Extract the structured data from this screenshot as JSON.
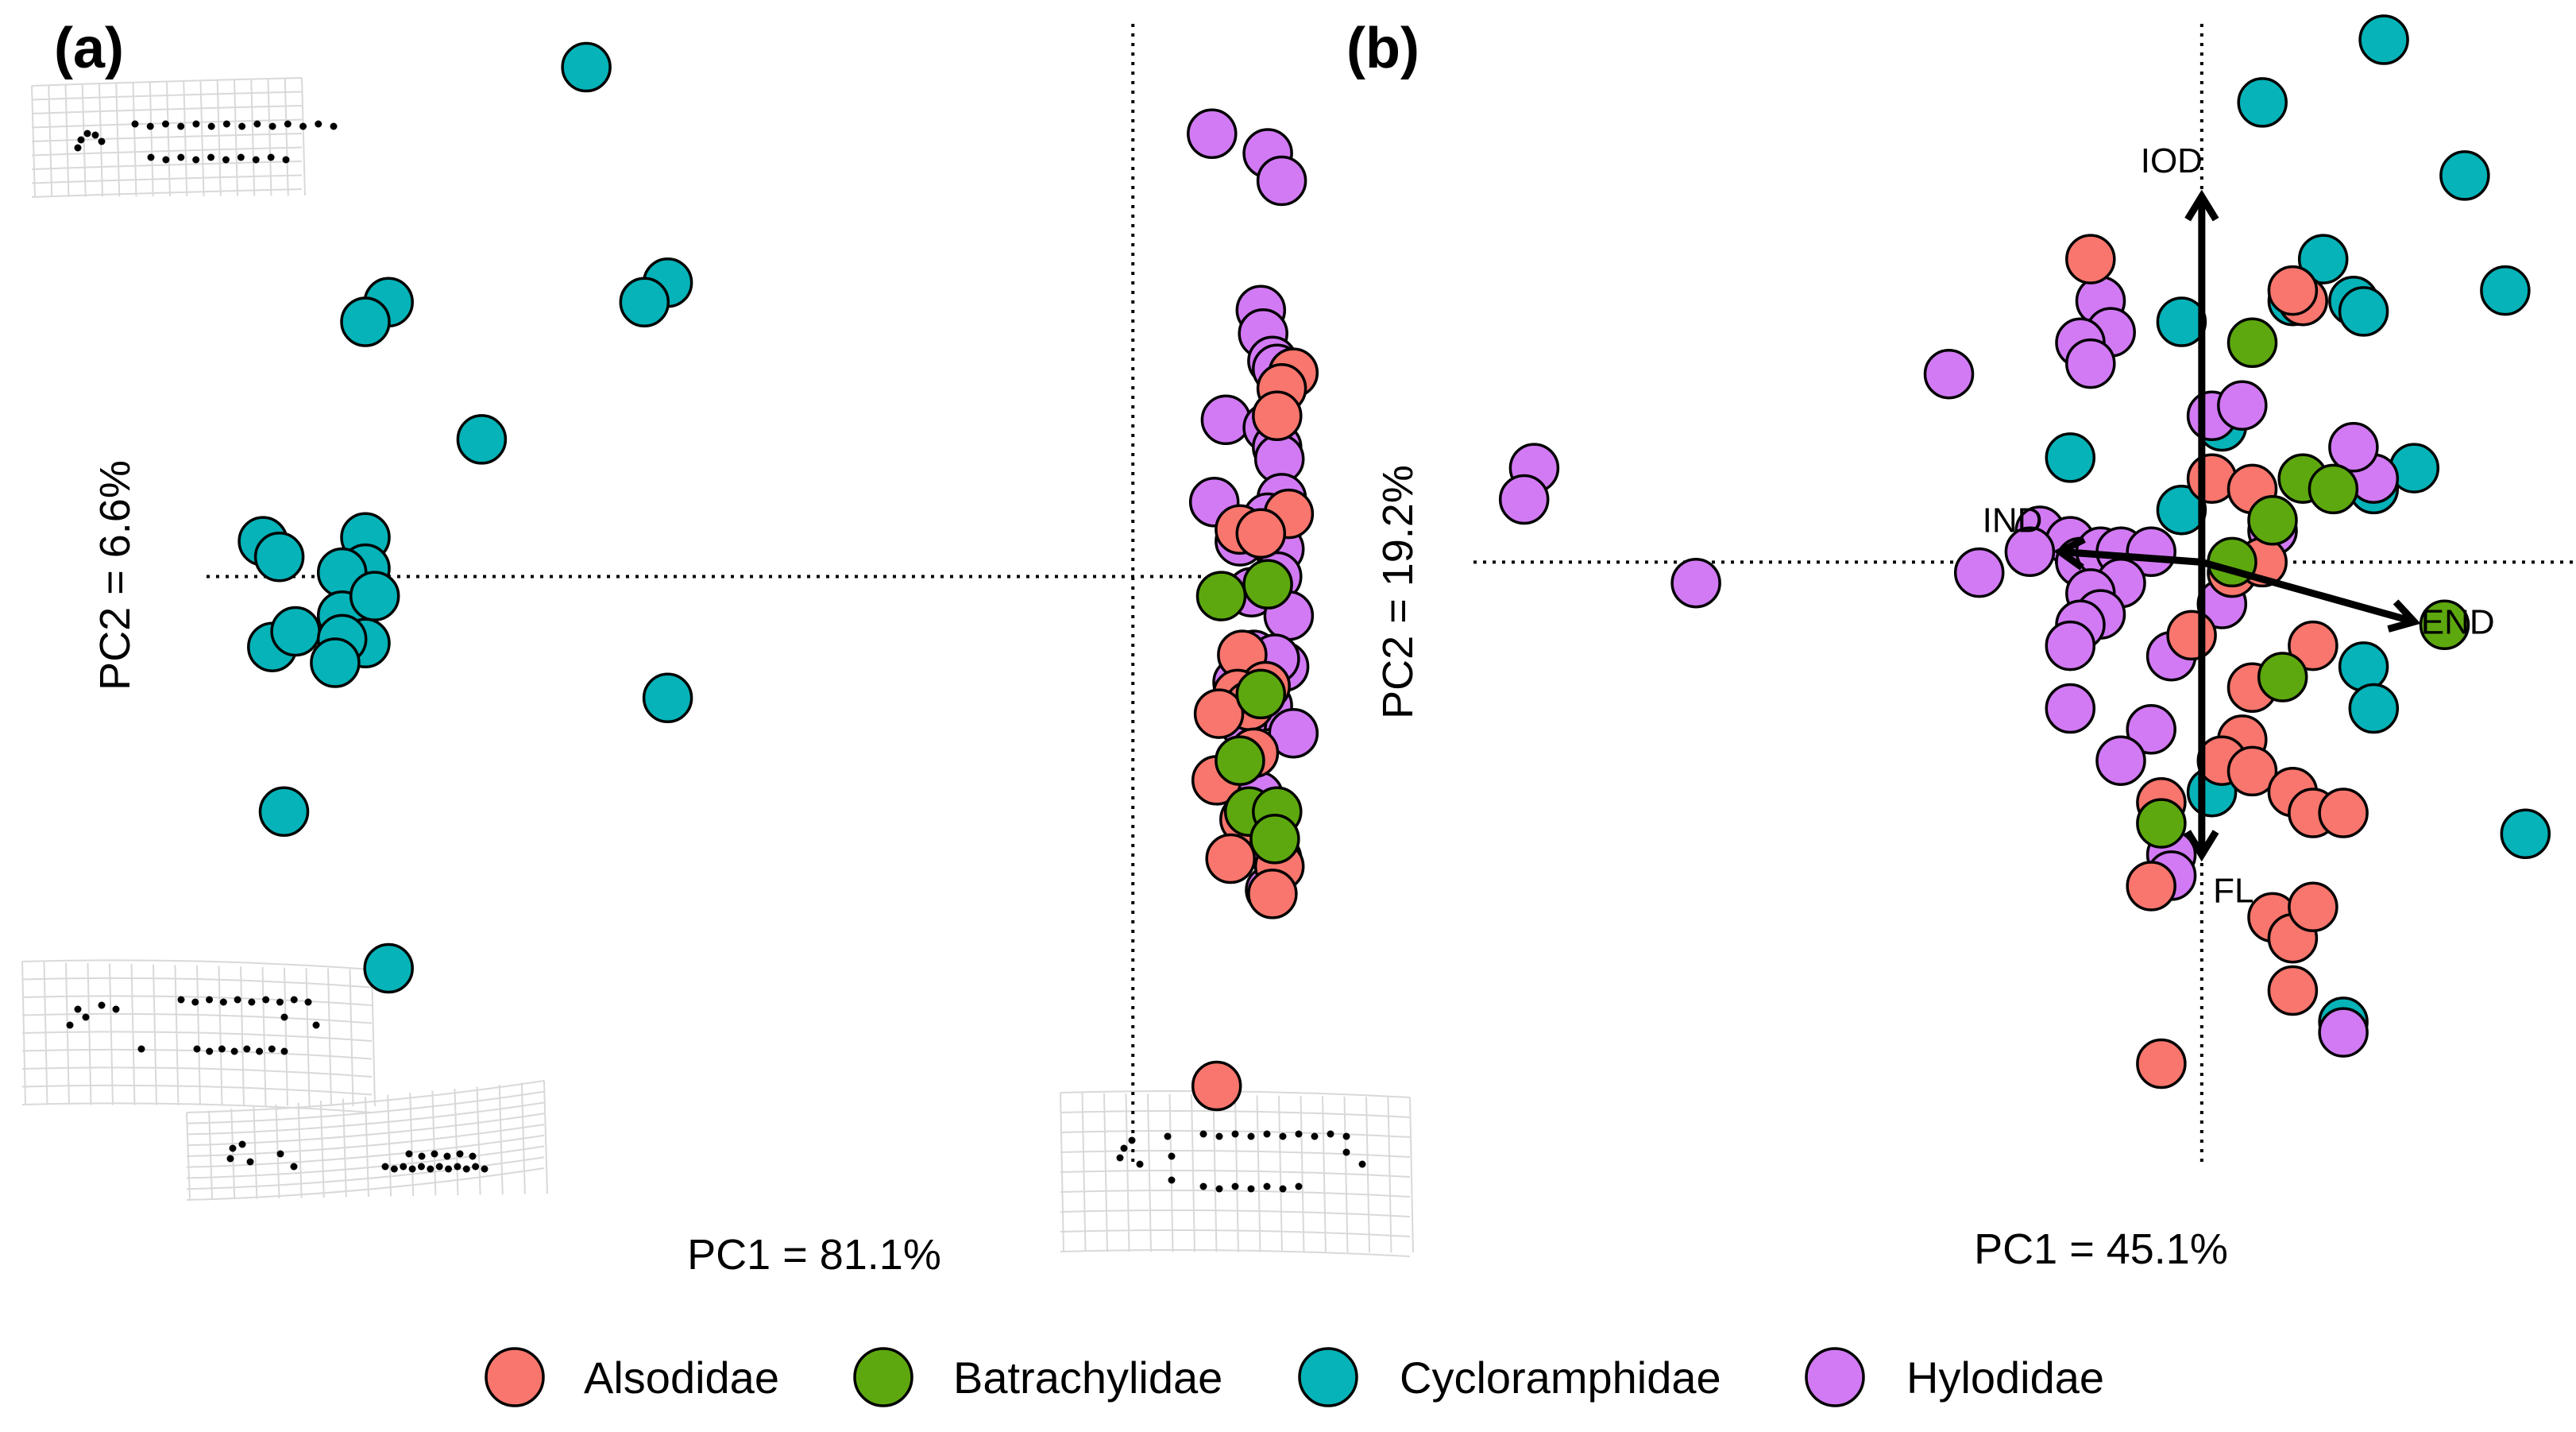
{
  "colors": {
    "Alsodidae": "#f8766d",
    "Batrachylidae": "#5ea80f",
    "Cycloramphidae": "#05b3b8",
    "Hylodidae": "#d27af4"
  },
  "legend": {
    "items": [
      {
        "label": "Alsodidae",
        "key": "Alsodidae"
      },
      {
        "label": "Batrachylidae",
        "key": "Batrachylidae"
      },
      {
        "label": "Cycloramphidae",
        "key": "Cycloramphidae"
      },
      {
        "label": "Hylodidae",
        "key": "Hylodidae"
      }
    ]
  },
  "chart_data": [
    {
      "type": "scatter",
      "panel_label": "(a)",
      "xlabel": "PC1 = 81.1%",
      "ylabel": "PC2 = 6.6%",
      "xlim": [
        -0.4,
        0.073
      ],
      "ylim": [
        -0.151,
        0.137
      ],
      "reference_lines": {
        "x": 0,
        "y": 0
      },
      "deformation_grids": [
        "top-left",
        "bottom-left",
        "bottom-left (lower)",
        "bottom-right"
      ],
      "series": [
        {
          "name": "Cycloramphidae",
          "points": [
            [
              -0.235,
              0.13
            ],
            [
              -0.32,
              0.07
            ],
            [
              -0.2,
              0.075
            ],
            [
              -0.33,
              0.065
            ],
            [
              -0.21,
              0.07
            ],
            [
              -0.28,
              0.035
            ],
            [
              -0.33,
              0.01
            ],
            [
              -0.33,
              0.002
            ],
            [
              -0.34,
              0.001
            ],
            [
              -0.374,
              0.009
            ],
            [
              -0.367,
              0.005
            ],
            [
              -0.34,
              -0.01
            ],
            [
              -0.326,
              -0.005
            ],
            [
              -0.37,
              -0.018
            ],
            [
              -0.33,
              -0.017
            ],
            [
              -0.36,
              -0.014
            ],
            [
              -0.34,
              -0.016
            ],
            [
              -0.343,
              -0.022
            ],
            [
              -0.2,
              -0.031
            ],
            [
              -0.365,
              -0.06
            ],
            [
              -0.32,
              -0.1
            ]
          ]
        },
        {
          "name": "Hylodidae",
          "points": [
            [
              0.034,
              0.113
            ],
            [
              0.058,
              0.108
            ],
            [
              0.064,
              0.101
            ],
            [
              0.055,
              0.068
            ],
            [
              0.056,
              0.062
            ],
            [
              0.06,
              0.055
            ],
            [
              0.062,
              0.053
            ],
            [
              0.04,
              0.04
            ],
            [
              0.058,
              0.038
            ],
            [
              0.062,
              0.033
            ],
            [
              0.063,
              0.03
            ],
            [
              0.064,
              0.02
            ],
            [
              0.062,
              0.012
            ],
            [
              0.035,
              0.019
            ],
            [
              0.058,
              0.015
            ],
            [
              0.046,
              0.009
            ],
            [
              0.063,
              0.007
            ],
            [
              0.062,
              0.0
            ],
            [
              0.051,
              -0.004
            ],
            [
              0.067,
              -0.01
            ],
            [
              0.052,
              -0.02
            ],
            [
              0.065,
              -0.023
            ],
            [
              0.045,
              -0.027
            ],
            [
              0.061,
              -0.021
            ],
            [
              0.058,
              -0.033
            ],
            [
              0.047,
              -0.037
            ],
            [
              0.069,
              -0.04
            ],
            [
              0.054,
              -0.056
            ],
            [
              0.062,
              -0.072
            ],
            [
              0.059,
              -0.08
            ]
          ]
        },
        {
          "name": "Alsodidae",
          "points": [
            [
              0.069,
              0.052
            ],
            [
              0.064,
              0.048
            ],
            [
              0.062,
              0.041
            ],
            [
              0.046,
              0.012
            ],
            [
              0.067,
              0.016
            ],
            [
              0.055,
              0.011
            ],
            [
              0.047,
              -0.02
            ],
            [
              0.057,
              -0.028
            ],
            [
              0.045,
              -0.03
            ],
            [
              0.05,
              -0.033
            ],
            [
              0.037,
              -0.035
            ],
            [
              0.052,
              -0.045
            ],
            [
              0.046,
              -0.047
            ],
            [
              0.036,
              -0.052
            ],
            [
              0.048,
              -0.062
            ],
            [
              0.042,
              -0.072
            ],
            [
              0.063,
              -0.074
            ],
            [
              0.06,
              -0.081
            ],
            [
              0.036,
              -0.13
            ]
          ]
        },
        {
          "name": "Batrachylidae",
          "points": [
            [
              0.038,
              -0.005
            ],
            [
              0.058,
              -0.002
            ],
            [
              0.055,
              -0.03
            ],
            [
              0.046,
              -0.047
            ],
            [
              0.05,
              -0.06
            ],
            [
              0.062,
              -0.06
            ],
            [
              0.061,
              -0.067
            ]
          ]
        }
      ]
    },
    {
      "type": "scatter",
      "panel_label": "(b)",
      "xlabel": "PC1 = 45.1%",
      "ylabel": "PC2 = 19.2%",
      "xlim": [
        -0.72,
        0.37
      ],
      "ylim": [
        -0.58,
        0.5
      ],
      "reference_lines": {
        "x": 0,
        "y": 0
      },
      "vectors": [
        {
          "label": "IOD",
          "x": 0.0,
          "y": 0.35
        },
        {
          "label": "IND",
          "x": -0.14,
          "y": 0.01
        },
        {
          "label": "END",
          "x": 0.21,
          "y": -0.057
        },
        {
          "label": "FL",
          "x": 0.0,
          "y": -0.28
        }
      ],
      "series": [
        {
          "name": "Cycloramphidae",
          "points": [
            [
              0.18,
              0.5
            ],
            [
              0.06,
              0.44
            ],
            [
              0.26,
              0.37
            ],
            [
              0.12,
              0.29
            ],
            [
              0.3,
              0.26
            ],
            [
              0.09,
              0.25
            ],
            [
              0.15,
              0.25
            ],
            [
              0.16,
              0.24
            ],
            [
              -0.02,
              0.23
            ],
            [
              0.02,
              0.13
            ],
            [
              -0.13,
              0.1
            ],
            [
              0.21,
              0.09
            ],
            [
              0.17,
              0.07
            ],
            [
              -0.02,
              0.05
            ],
            [
              0.16,
              -0.1
            ],
            [
              0.17,
              -0.14
            ],
            [
              0.01,
              -0.22
            ],
            [
              0.32,
              -0.26
            ],
            [
              0.14,
              -0.44
            ]
          ]
        },
        {
          "name": "Hylodidae",
          "points": [
            [
              -0.1,
              0.25
            ],
            [
              -0.09,
              0.22
            ],
            [
              -0.12,
              0.21
            ],
            [
              -0.25,
              0.18
            ],
            [
              -0.11,
              0.19
            ],
            [
              0.01,
              0.14
            ],
            [
              0.04,
              0.15
            ],
            [
              -0.66,
              0.09
            ],
            [
              -0.67,
              0.06
            ],
            [
              -0.16,
              0.03
            ],
            [
              -0.13,
              0.02
            ],
            [
              -0.12,
              0.0
            ],
            [
              -0.1,
              0.01
            ],
            [
              -0.08,
              0.01
            ],
            [
              -0.05,
              0.01
            ],
            [
              -0.08,
              -0.02
            ],
            [
              -0.11,
              -0.03
            ],
            [
              -0.1,
              -0.05
            ],
            [
              -0.12,
              -0.06
            ],
            [
              -0.13,
              -0.08
            ],
            [
              -0.5,
              -0.02
            ],
            [
              -0.22,
              -0.01
            ],
            [
              -0.17,
              0.01
            ],
            [
              0.07,
              0.03
            ],
            [
              0.02,
              -0.04
            ],
            [
              0.17,
              0.08
            ],
            [
              -0.03,
              -0.09
            ],
            [
              -0.13,
              -0.14
            ],
            [
              -0.05,
              -0.16
            ],
            [
              -0.08,
              -0.19
            ],
            [
              0.15,
              0.11
            ],
            [
              -0.03,
              -0.28
            ],
            [
              0.14,
              -0.45
            ],
            [
              -0.03,
              -0.3
            ]
          ]
        },
        {
          "name": "Alsodidae",
          "points": [
            [
              -0.11,
              0.29
            ],
            [
              0.1,
              0.25
            ],
            [
              0.09,
              0.26
            ],
            [
              0.01,
              0.08
            ],
            [
              0.05,
              0.07
            ],
            [
              0.03,
              -0.01
            ],
            [
              0.06,
              0.0
            ],
            [
              -0.01,
              -0.07
            ],
            [
              0.11,
              -0.08
            ],
            [
              0.05,
              -0.12
            ],
            [
              0.04,
              -0.17
            ],
            [
              0.02,
              -0.19
            ],
            [
              0.05,
              -0.2
            ],
            [
              0.09,
              -0.22
            ],
            [
              0.11,
              -0.24
            ],
            [
              0.14,
              -0.24
            ],
            [
              -0.04,
              -0.23
            ],
            [
              -0.05,
              -0.31
            ],
            [
              0.07,
              -0.34
            ],
            [
              0.09,
              -0.36
            ],
            [
              0.09,
              -0.41
            ],
            [
              -0.04,
              -0.48
            ],
            [
              0.11,
              -0.33
            ]
          ]
        },
        {
          "name": "Batrachylidae",
          "points": [
            [
              0.05,
              0.21
            ],
            [
              0.1,
              0.08
            ],
            [
              0.07,
              0.04
            ],
            [
              0.13,
              0.07
            ],
            [
              0.03,
              0.0
            ],
            [
              0.24,
              -0.06
            ],
            [
              0.08,
              -0.11
            ],
            [
              -0.04,
              -0.25
            ]
          ]
        }
      ]
    }
  ]
}
